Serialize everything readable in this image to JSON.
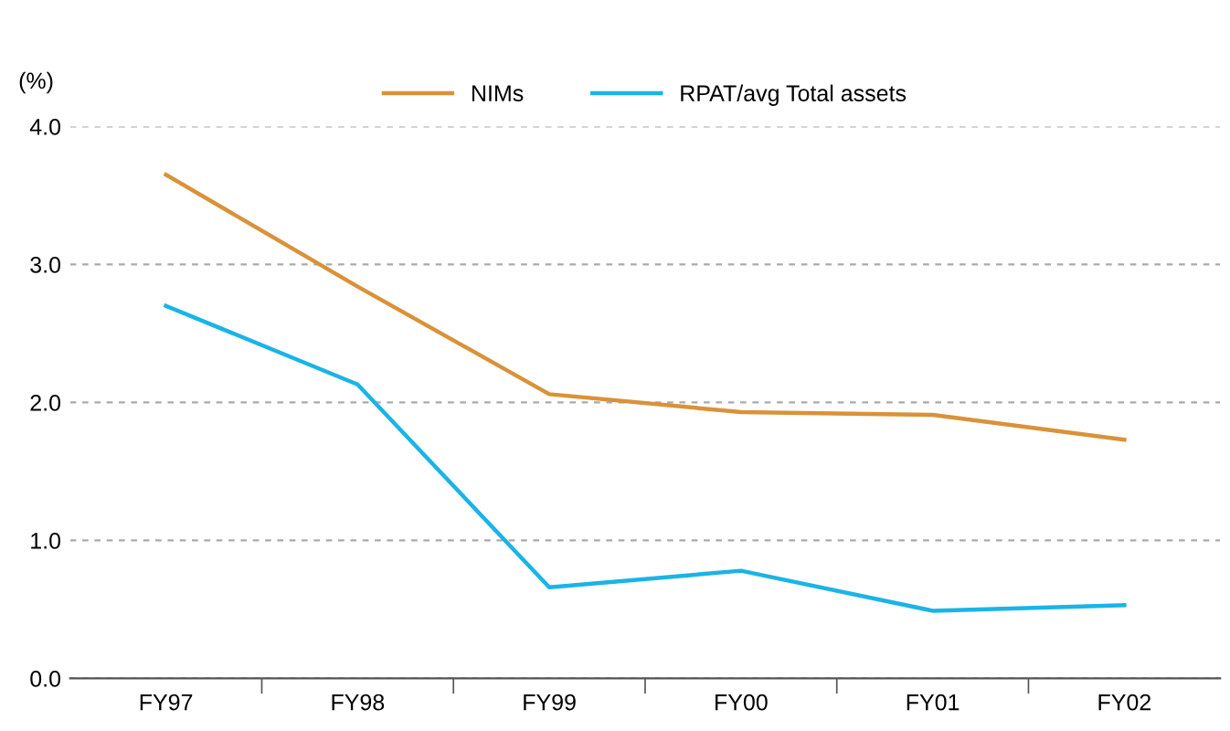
{
  "chart_data": {
    "type": "line",
    "ylabel": "(%)",
    "categories": [
      "FY97",
      "FY98",
      "FY99",
      "FY00",
      "FY01",
      "FY02"
    ],
    "series": [
      {
        "name": "NIMs",
        "color": "#d9923a",
        "values": [
          3.65,
          2.84,
          2.06,
          1.93,
          1.91,
          1.73
        ]
      },
      {
        "name": "RPAT/avg Total assets",
        "color": "#1ab4e6",
        "values": [
          2.7,
          2.13,
          0.66,
          0.78,
          0.49,
          0.53
        ]
      }
    ],
    "ylim": [
      0,
      4.0
    ],
    "yticks": [
      {
        "value": 0,
        "label": "0.0"
      },
      {
        "value": 1,
        "label": "1.0"
      },
      {
        "value": 2,
        "label": "2.0"
      },
      {
        "value": 3,
        "label": "3.0"
      },
      {
        "value": 4,
        "label": "4.0"
      }
    ],
    "grid": "y",
    "legend": "top",
    "marker": "none",
    "line_style": "solid"
  }
}
